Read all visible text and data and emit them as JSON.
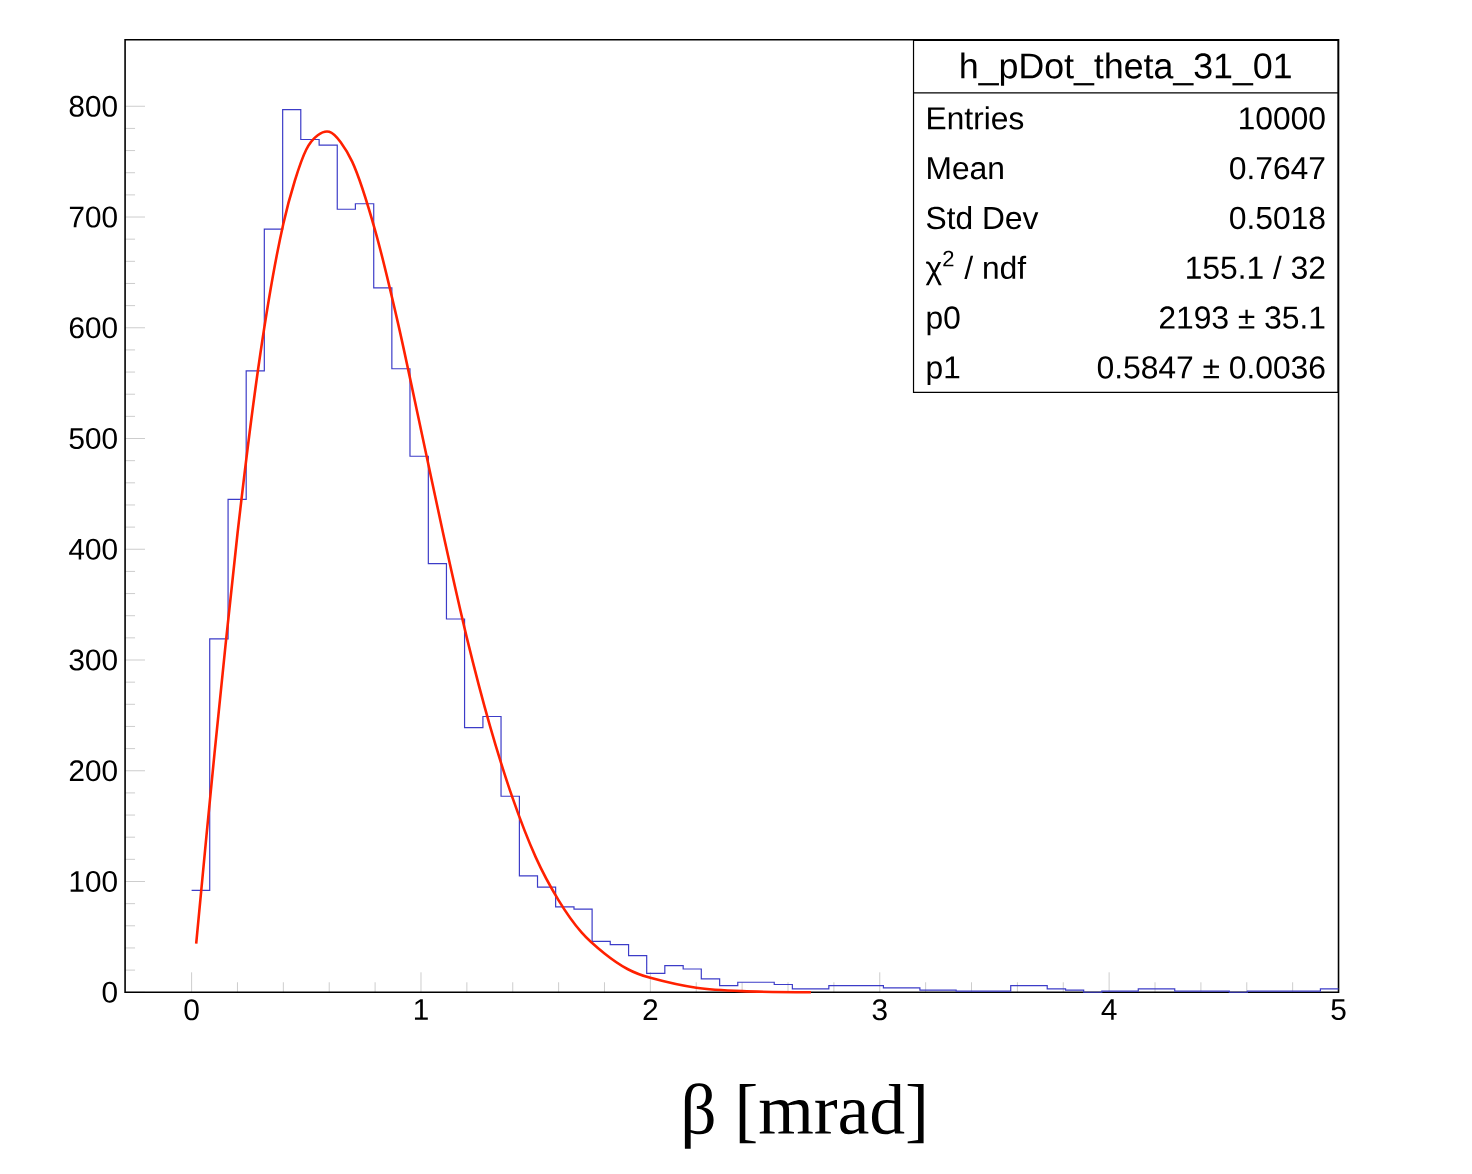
{
  "chart_data": {
    "type": "histogram",
    "xlabel": "β [mrad]",
    "xlim": [
      -0.29,
      5.0
    ],
    "ylim": [
      0,
      860
    ],
    "xticks": [
      0,
      1,
      2,
      3,
      4,
      5
    ],
    "yticks": [
      0,
      100,
      200,
      300,
      400,
      500,
      600,
      700,
      800
    ],
    "annotations": [
      "h_pDot_theta_31_01",
      "Entries",
      "10000",
      "Mean",
      "0.7647",
      "Std Dev",
      "0.5018",
      "χ$^{2}$ / ndf",
      "155.1 / 32",
      "p0",
      "2193 ± 35.1",
      "p1",
      "0.5847 ± 0.0036"
    ],
    "series": [
      {
        "type": "histogram",
        "color": "#3c3cc8",
        "bins": [
          0,
          0.079,
          0.159,
          0.238,
          0.317,
          0.397,
          0.476,
          0.556,
          0.635,
          0.714,
          0.794,
          0.873,
          0.952,
          1.032,
          1.111,
          1.19,
          1.27,
          1.349,
          1.429,
          1.508,
          1.587,
          1.667,
          1.746,
          1.825,
          1.905,
          1.984,
          2.063,
          2.143,
          2.222,
          2.302,
          2.381,
          2.46,
          2.54,
          2.619,
          2.698,
          2.778,
          2.857,
          2.937,
          3.016,
          3.095,
          3.175,
          3.254,
          3.333,
          3.413,
          3.492,
          3.571,
          3.651,
          3.73,
          3.81,
          3.889,
          3.968,
          4.048,
          4.127,
          4.206,
          4.286,
          4.365,
          4.444,
          4.524,
          4.603,
          4.683,
          4.762,
          4.841,
          4.921,
          5.0
        ],
        "values": [
          92,
          319,
          445,
          561,
          689,
          797,
          770,
          765,
          707,
          712,
          636,
          563,
          484,
          387,
          337,
          239,
          249,
          177,
          105,
          95,
          77,
          75,
          46,
          43,
          33,
          17,
          24,
          21,
          12,
          6,
          9,
          9,
          7,
          3,
          3,
          6,
          6,
          6,
          4,
          4,
          2,
          2,
          1,
          1,
          1,
          6,
          6,
          3,
          2,
          0,
          1,
          1,
          3,
          3,
          1,
          1,
          1,
          0,
          1,
          1,
          1,
          1,
          3
        ]
      },
      {
        "type": "line",
        "color": "#ff2000",
        "x": [
          0.02,
          0.1,
          0.2,
          0.3,
          0.4,
          0.5,
          0.6,
          0.7,
          0.8,
          0.9,
          1.0,
          1.1,
          1.2,
          1.3,
          1.4,
          1.5,
          1.6,
          1.7,
          1.8,
          1.9,
          2.0,
          2.2,
          2.4,
          2.7
        ],
        "values": [
          44,
          216,
          414,
          577,
          694,
          761,
          777,
          750,
          688,
          604,
          508,
          411,
          320,
          241,
          175,
          122,
          83,
          54,
          35,
          21,
          13,
          4,
          1,
          0
        ]
      }
    ]
  }
}
